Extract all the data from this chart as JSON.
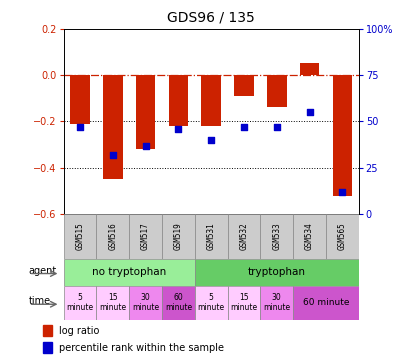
{
  "title": "GDS96 / 135",
  "samples": [
    "GSM515",
    "GSM516",
    "GSM517",
    "GSM519",
    "GSM531",
    "GSM532",
    "GSM533",
    "GSM534",
    "GSM565"
  ],
  "log_ratio": [
    -0.21,
    -0.45,
    -0.32,
    -0.22,
    -0.22,
    -0.09,
    -0.14,
    0.05,
    -0.52
  ],
  "percentile": [
    47,
    32,
    37,
    46,
    40,
    47,
    47,
    55,
    12
  ],
  "bar_color": "#cc2200",
  "dot_color": "#0000cc",
  "ylim_left": [
    -0.6,
    0.2
  ],
  "ylim_right": [
    0,
    100
  ],
  "right_ticks": [
    0,
    25,
    50,
    75,
    100
  ],
  "right_tick_labels": [
    "0",
    "25",
    "50",
    "75",
    "100%"
  ],
  "left_ticks": [
    -0.6,
    -0.4,
    -0.2,
    0.0,
    0.2
  ],
  "dotted_lines": [
    -0.2,
    -0.4
  ],
  "agent_labels": [
    {
      "label": "no tryptophan",
      "start": 0,
      "end": 4,
      "color": "#99ee99"
    },
    {
      "label": "tryptophan",
      "start": 4,
      "end": 9,
      "color": "#66cc66"
    }
  ],
  "time_labels": [
    {
      "label": "5\nminute",
      "start": 0,
      "end": 1,
      "color": "#ffccff"
    },
    {
      "label": "15\nminute",
      "start": 1,
      "end": 2,
      "color": "#ffccff"
    },
    {
      "label": "30\nminute",
      "start": 2,
      "end": 3,
      "color": "#ee88ee"
    },
    {
      "label": "60\nminute",
      "start": 3,
      "end": 4,
      "color": "#cc55cc"
    },
    {
      "label": "5\nminute",
      "start": 4,
      "end": 5,
      "color": "#ffccff"
    },
    {
      "label": "15\nminute",
      "start": 5,
      "end": 6,
      "color": "#ffccff"
    },
    {
      "label": "30\nminute",
      "start": 6,
      "end": 7,
      "color": "#ee88ee"
    },
    {
      "label": "60 minute",
      "start": 7,
      "end": 9,
      "color": "#cc55cc"
    }
  ]
}
